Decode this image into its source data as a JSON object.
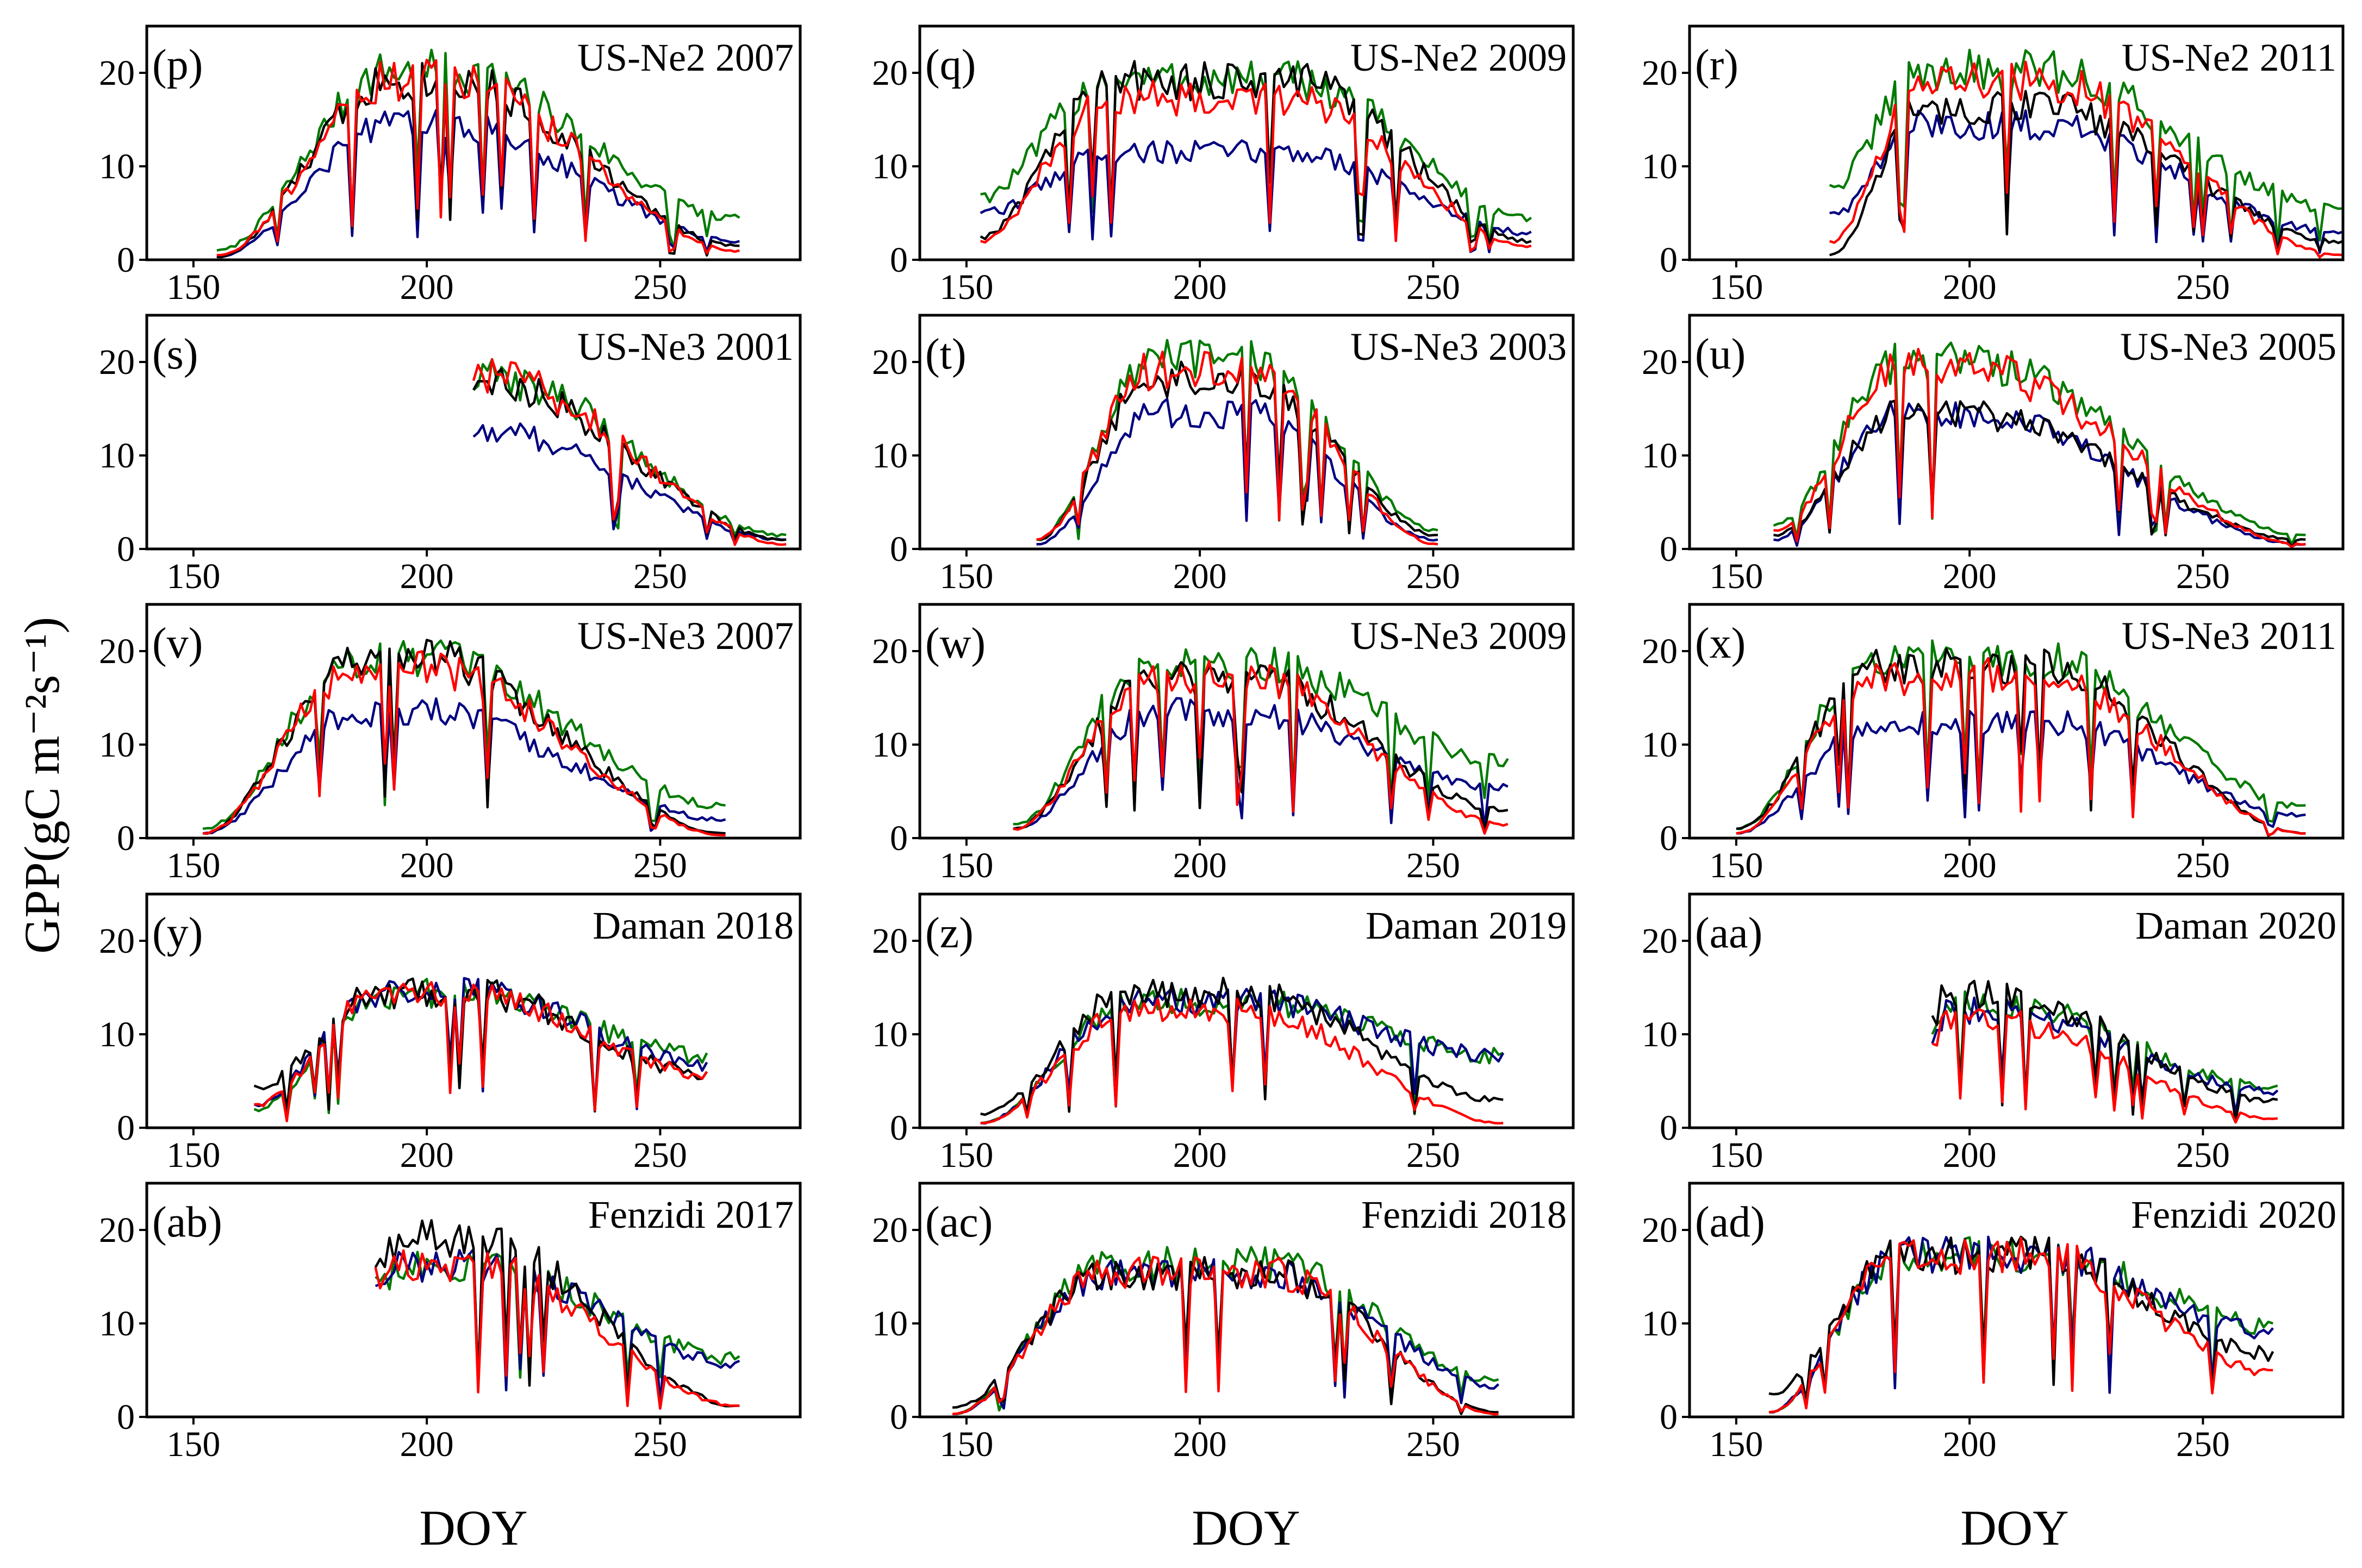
{
  "figure": {
    "ylabel": "GPP(gC m⁻²s⁻¹)",
    "xlabel": "DOY",
    "colors": {
      "black": "#000000",
      "red": "#ff0000",
      "green": "#007a00",
      "blue": "#000080"
    }
  },
  "chart_data": [
    {
      "type": "line",
      "letter": "(p)",
      "title": "US-Ne2 2007",
      "x_ticks": [
        150,
        200,
        250
      ],
      "y_ticks": [
        0,
        10,
        20
      ],
      "xlim": [
        140,
        280
      ],
      "ylim": [
        0,
        25
      ],
      "range": [
        155,
        267
      ],
      "peak": [
        192,
        205
      ],
      "ends": [
        0.5,
        1.5
      ],
      "series": [
        {
          "color": "black",
          "peak": 20,
          "ends": [
            0.3,
            1.5
          ]
        },
        {
          "color": "red",
          "peak": 20,
          "ends": [
            0.5,
            1.0
          ]
        },
        {
          "color": "green",
          "peak": 21,
          "ends": [
            1.0,
            4.5
          ]
        },
        {
          "color": "blue",
          "peak": 15,
          "ends": [
            0.3,
            2.0
          ]
        }
      ]
    },
    {
      "type": "line",
      "letter": "(q)",
      "title": "US-Ne2 2009",
      "x_ticks": [
        150,
        200,
        250
      ],
      "y_ticks": [
        0,
        10,
        20
      ],
      "xlim": [
        140,
        280
      ],
      "ylim": [
        0,
        25
      ],
      "range": [
        153,
        271
      ],
      "peak": [
        180,
        220
      ],
      "ends": [
        2,
        3
      ],
      "series": [
        {
          "color": "black",
          "peak": 20,
          "ends": [
            2.5,
            2.0
          ]
        },
        {
          "color": "red",
          "peak": 18,
          "ends": [
            2.0,
            1.5
          ]
        },
        {
          "color": "green",
          "peak": 20,
          "ends": [
            7.0,
            4.5
          ]
        },
        {
          "color": "blue",
          "peak": 12,
          "ends": [
            5.0,
            3.0
          ]
        }
      ]
    },
    {
      "type": "line",
      "letter": "(r)",
      "title": "US-Ne2 2011",
      "x_ticks": [
        150,
        200,
        250
      ],
      "y_ticks": [
        0,
        10,
        20
      ],
      "xlim": [
        140,
        280
      ],
      "ylim": [
        0,
        25
      ],
      "range": [
        170,
        280
      ],
      "peak": [
        190,
        215
      ],
      "ends": [
        2,
        2
      ],
      "series": [
        {
          "color": "black",
          "peak": 17,
          "ends": [
            0.5,
            2.0
          ]
        },
        {
          "color": "red",
          "peak": 20,
          "ends": [
            2.0,
            0.5
          ]
        },
        {
          "color": "green",
          "peak": 21,
          "ends": [
            8.0,
            5.5
          ]
        },
        {
          "color": "blue",
          "peak": 15,
          "ends": [
            5.0,
            3.0
          ]
        }
      ]
    },
    {
      "type": "line",
      "letter": "(s)",
      "title": "US-Ne3 2001",
      "x_ticks": [
        150,
        200,
        250
      ],
      "y_ticks": [
        0,
        10,
        20
      ],
      "xlim": [
        140,
        280
      ],
      "ylim": [
        0,
        25
      ],
      "range": [
        210,
        277
      ],
      "peak": [
        210,
        215
      ],
      "ends": [
        17,
        1
      ],
      "series": [
        {
          "color": "black",
          "peak": 18,
          "ends": [
            17,
            1.0
          ]
        },
        {
          "color": "red",
          "peak": 19,
          "ends": [
            18,
            0.5
          ]
        },
        {
          "color": "green",
          "peak": 19,
          "ends": [
            17,
            1.5
          ]
        },
        {
          "color": "blue",
          "peak": 13,
          "ends": [
            12,
            1.0
          ]
        }
      ]
    },
    {
      "type": "line",
      "letter": "(t)",
      "title": "US-Ne3 2003",
      "x_ticks": [
        150,
        200,
        250
      ],
      "y_ticks": [
        0,
        10,
        20
      ],
      "xlim": [
        140,
        280
      ],
      "ylim": [
        0,
        25
      ],
      "range": [
        165,
        251
      ],
      "peak": [
        190,
        210
      ],
      "ends": [
        1,
        1.5
      ],
      "series": [
        {
          "color": "black",
          "peak": 19,
          "ends": [
            1.0,
            1.5
          ]
        },
        {
          "color": "red",
          "peak": 20,
          "ends": [
            1.0,
            0.5
          ]
        },
        {
          "color": "green",
          "peak": 21,
          "ends": [
            1.0,
            2.0
          ]
        },
        {
          "color": "blue",
          "peak": 15,
          "ends": [
            0.5,
            1.0
          ]
        }
      ]
    },
    {
      "type": "line",
      "letter": "(u)",
      "title": "US-Ne3 2005",
      "x_ticks": [
        150,
        200,
        250
      ],
      "y_ticks": [
        0,
        10,
        20
      ],
      "xlim": [
        140,
        280
      ],
      "ylim": [
        0,
        25
      ],
      "range": [
        158,
        272
      ],
      "peak": [
        185,
        200
      ],
      "ends": [
        2,
        1
      ],
      "series": [
        {
          "color": "black",
          "peak": 15,
          "ends": [
            1.5,
            1.0
          ]
        },
        {
          "color": "red",
          "peak": 20,
          "ends": [
            2.0,
            0.5
          ]
        },
        {
          "color": "green",
          "peak": 21,
          "ends": [
            2.5,
            1.5
          ]
        },
        {
          "color": "blue",
          "peak": 15,
          "ends": [
            1.0,
            0.5
          ]
        }
      ]
    },
    {
      "type": "line",
      "letter": "(v)",
      "title": "US-Ne3 2007",
      "x_ticks": [
        150,
        200,
        250
      ],
      "y_ticks": [
        0,
        10,
        20
      ],
      "xlim": [
        140,
        280
      ],
      "ylim": [
        0,
        25
      ],
      "range": [
        152,
        264
      ],
      "peak": [
        185,
        200
      ],
      "ends": [
        0.5,
        1
      ],
      "series": [
        {
          "color": "black",
          "peak": 20,
          "ends": [
            0.5,
            0.5
          ]
        },
        {
          "color": "red",
          "peak": 19,
          "ends": [
            0.5,
            0.3
          ]
        },
        {
          "color": "green",
          "peak": 20,
          "ends": [
            1.0,
            3.5
          ]
        },
        {
          "color": "blue",
          "peak": 14,
          "ends": [
            0.5,
            2.0
          ]
        }
      ]
    },
    {
      "type": "line",
      "letter": "(w)",
      "title": "US-Ne3 2009",
      "x_ticks": [
        150,
        200,
        250
      ],
      "y_ticks": [
        0,
        10,
        20
      ],
      "xlim": [
        140,
        280
      ],
      "ylim": [
        0,
        25
      ],
      "range": [
        160,
        266
      ],
      "peak": [
        190,
        210
      ],
      "ends": [
        1,
        5
      ],
      "series": [
        {
          "color": "black",
          "peak": 18,
          "ends": [
            1.0,
            3.0
          ]
        },
        {
          "color": "red",
          "peak": 18,
          "ends": [
            1.0,
            1.5
          ]
        },
        {
          "color": "green",
          "peak": 20,
          "ends": [
            1.5,
            8.5
          ]
        },
        {
          "color": "blue",
          "peak": 14,
          "ends": [
            1.0,
            5.5
          ]
        }
      ]
    },
    {
      "type": "line",
      "letter": "(x)",
      "title": "US-Ne3 2011",
      "x_ticks": [
        150,
        200,
        250
      ],
      "y_ticks": [
        0,
        10,
        20
      ],
      "xlim": [
        140,
        280
      ],
      "ylim": [
        0,
        25
      ],
      "range": [
        150,
        272
      ],
      "peak": [
        180,
        215
      ],
      "ends": [
        1,
        2
      ],
      "series": [
        {
          "color": "black",
          "peak": 19,
          "ends": [
            1.0,
            0.5
          ]
        },
        {
          "color": "red",
          "peak": 18,
          "ends": [
            0.5,
            0.5
          ]
        },
        {
          "color": "green",
          "peak": 20,
          "ends": [
            1.0,
            3.5
          ]
        },
        {
          "color": "blue",
          "peak": 13,
          "ends": [
            0.5,
            2.5
          ]
        }
      ]
    },
    {
      "type": "line",
      "letter": "(y)",
      "title": "Daman 2018",
      "x_ticks": [
        150,
        200,
        250
      ],
      "y_ticks": [
        0,
        10,
        20
      ],
      "xlim": [
        140,
        280
      ],
      "ylim": [
        0,
        25
      ],
      "range": [
        163,
        260
      ],
      "peak": [
        190,
        210
      ],
      "ends": [
        4,
        6
      ],
      "series": [
        {
          "color": "black",
          "peak": 15,
          "ends": [
            4.5,
            6.0
          ]
        },
        {
          "color": "red",
          "peak": 15,
          "ends": [
            2.5,
            6.0
          ]
        },
        {
          "color": "green",
          "peak": 15,
          "ends": [
            2.0,
            8.0
          ]
        },
        {
          "color": "blue",
          "peak": 15,
          "ends": [
            2.5,
            7.0
          ]
        }
      ]
    },
    {
      "type": "line",
      "letter": "(z)",
      "title": "Daman 2019",
      "x_ticks": [
        150,
        200,
        250
      ],
      "y_ticks": [
        0,
        10,
        20
      ],
      "xlim": [
        140,
        280
      ],
      "ylim": [
        0,
        25
      ],
      "range": [
        153,
        265
      ],
      "peak": [
        185,
        210
      ],
      "ends": [
        1,
        4
      ],
      "series": [
        {
          "color": "black",
          "peak": 15,
          "ends": [
            1.5,
            3.0
          ]
        },
        {
          "color": "red",
          "peak": 13,
          "ends": [
            0.5,
            0.5
          ]
        },
        {
          "color": "green",
          "peak": 14,
          "ends": [
            0.5,
            8.0
          ]
        },
        {
          "color": "blue",
          "peak": 14,
          "ends": [
            0.5,
            8.0
          ]
        }
      ]
    },
    {
      "type": "line",
      "letter": "(aa)",
      "title": "Daman 2020",
      "x_ticks": [
        150,
        200,
        250
      ],
      "y_ticks": [
        0,
        10,
        20
      ],
      "xlim": [
        140,
        280
      ],
      "ylim": [
        0,
        25
      ],
      "range": [
        192,
        266
      ],
      "peak": [
        195,
        205
      ],
      "ends": [
        10,
        3
      ],
      "series": [
        {
          "color": "black",
          "peak": 15,
          "ends": [
            12,
            3.0
          ]
        },
        {
          "color": "red",
          "peak": 12,
          "ends": [
            9.0,
            1.0
          ]
        },
        {
          "color": "green",
          "peak": 14,
          "ends": [
            10,
            4.5
          ]
        },
        {
          "color": "blue",
          "peak": 13,
          "ends": [
            9.0,
            4.0
          ]
        }
      ]
    },
    {
      "type": "line",
      "letter": "(ab)",
      "title": "Fenzidi 2017",
      "x_ticks": [
        150,
        200,
        250
      ],
      "y_ticks": [
        0,
        10,
        20
      ],
      "xlim": [
        140,
        280
      ],
      "ylim": [
        0,
        25
      ],
      "range": [
        189,
        267
      ],
      "peak": [
        195,
        210
      ],
      "ends": [
        16,
        1.5
      ],
      "series": [
        {
          "color": "black",
          "peak": 20,
          "ends": [
            16,
            1.2
          ]
        },
        {
          "color": "red",
          "peak": 17,
          "ends": [
            16,
            1.2
          ]
        },
        {
          "color": "green",
          "peak": 17,
          "ends": [
            15,
            6.5
          ]
        },
        {
          "color": "blue",
          "peak": 17,
          "ends": [
            14,
            6.0
          ]
        }
      ]
    },
    {
      "type": "line",
      "letter": "(ac)",
      "title": "Fenzidi 2018",
      "x_ticks": [
        150,
        200,
        250
      ],
      "y_ticks": [
        0,
        10,
        20
      ],
      "xlim": [
        140,
        280
      ],
      "ylim": [
        0,
        25
      ],
      "range": [
        147,
        264
      ],
      "peak": [
        180,
        215
      ],
      "ends": [
        0.5,
        1
      ],
      "series": [
        {
          "color": "black",
          "peak": 16,
          "ends": [
            1.0,
            0.5
          ]
        },
        {
          "color": "red",
          "peak": 16,
          "ends": [
            0.3,
            0.3
          ]
        },
        {
          "color": "green",
          "peak": 17,
          "ends": [
            0.3,
            4.0
          ]
        },
        {
          "color": "blue",
          "peak": 16,
          "ends": [
            0.3,
            3.5
          ]
        }
      ]
    },
    {
      "type": "line",
      "letter": "(ad)",
      "title": "Fenzidi 2020",
      "x_ticks": [
        150,
        200,
        250
      ],
      "y_ticks": [
        0,
        10,
        20
      ],
      "xlim": [
        140,
        280
      ],
      "ylim": [
        0,
        25
      ],
      "range": [
        157,
        265
      ],
      "peak": [
        185,
        215
      ],
      "ends": [
        1,
        7
      ],
      "series": [
        {
          "color": "black",
          "peak": 18,
          "ends": [
            2.5,
            7.0
          ]
        },
        {
          "color": "red",
          "peak": 18,
          "ends": [
            0.5,
            5.0
          ]
        },
        {
          "color": "green",
          "peak": 18,
          "ends": [
            0.5,
            10
          ]
        },
        {
          "color": "blue",
          "peak": 18,
          "ends": [
            0.5,
            9.5
          ]
        }
      ]
    }
  ]
}
